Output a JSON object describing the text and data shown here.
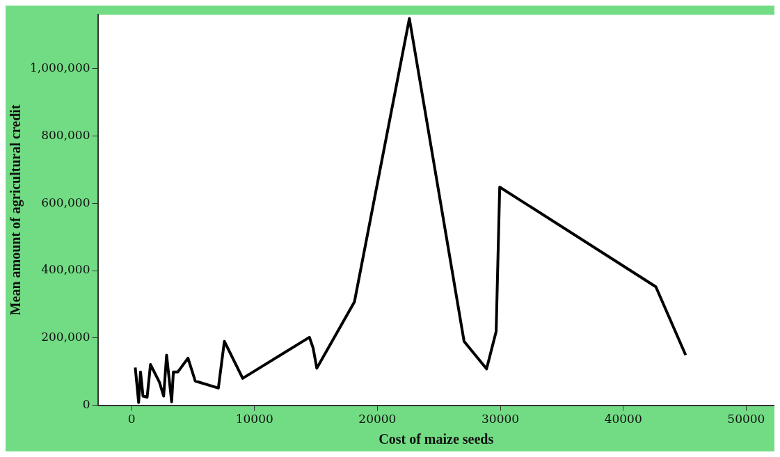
{
  "chart_data": {
    "type": "line",
    "xlabel": "Cost of maize seeds",
    "ylabel": "Mean amount of agricultural credit",
    "x": [
      300,
      575,
      730,
      930,
      1265,
      1540,
      2270,
      2610,
      2850,
      3260,
      3400,
      3760,
      4590,
      5180,
      7060,
      7550,
      9040,
      14470,
      14770,
      15070,
      18130,
      22600,
      27050,
      28880,
      29660,
      29950,
      42650,
      45080
    ],
    "series": [
      {
        "color": "#000000",
        "values": [
          112000,
          8000,
          99000,
          27000,
          24000,
          121000,
          68000,
          27000,
          149000,
          10000,
          99000,
          99000,
          140000,
          72000,
          51000,
          190000,
          80000,
          202000,
          170000,
          110000,
          307000,
          1149000,
          190000,
          108000,
          219000,
          648000,
          352000,
          149000
        ]
      }
    ],
    "xlim": [
      -2750,
      52300
    ],
    "xticks": [
      0,
      10000,
      20000,
      30000,
      40000,
      50000
    ],
    "ylim": [
      0,
      1160000
    ],
    "yticks": [
      0,
      {
        "value": 200000,
        "label": "200,000"
      },
      {
        "value": 400000,
        "label": "400,000"
      },
      {
        "value": 600000,
        "label": "600,000"
      },
      {
        "value": 800000,
        "label": "800,000"
      },
      {
        "value": 1000000,
        "label": "1,000,000"
      }
    ]
  }
}
